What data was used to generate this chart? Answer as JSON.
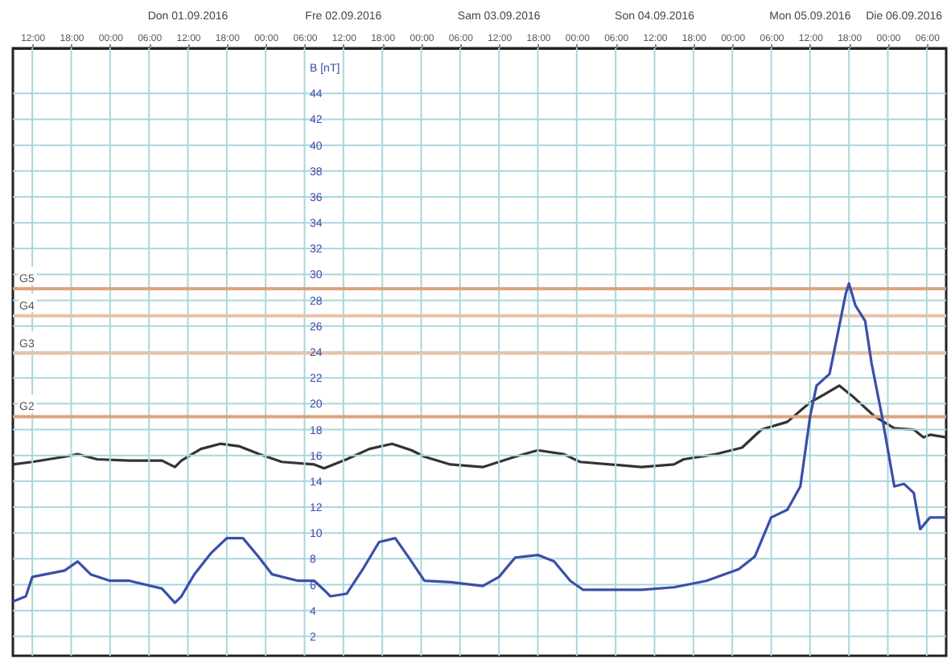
{
  "chart_data": {
    "type": "line",
    "ylabel": "B [nT]",
    "xlim": [
      "2016-08-31T09:00",
      "2016-09-06T09:00"
    ],
    "ylim": [
      0.5,
      47.5
    ],
    "yticks": [
      2,
      4,
      6,
      8,
      10,
      12,
      14,
      16,
      18,
      20,
      22,
      24,
      26,
      28,
      30,
      32,
      34,
      36,
      38,
      40,
      42,
      44
    ],
    "xticks": [
      {
        "value": "2016-08-31T12:00",
        "label": "12:00"
      },
      {
        "value": "2016-08-31T18:00",
        "label": "18:00"
      },
      {
        "value": "2016-09-01T00:00",
        "label": "00:00"
      },
      {
        "value": "2016-09-01T06:00",
        "label": "06:00"
      },
      {
        "value": "2016-09-01T12:00",
        "label": "12:00"
      },
      {
        "value": "2016-09-01T18:00",
        "label": "18:00"
      },
      {
        "value": "2016-09-02T00:00",
        "label": "00:00"
      },
      {
        "value": "2016-09-02T06:00",
        "label": "06:00"
      },
      {
        "value": "2016-09-02T12:00",
        "label": "12:00"
      },
      {
        "value": "2016-09-02T18:00",
        "label": "18:00"
      },
      {
        "value": "2016-09-03T00:00",
        "label": "00:00"
      },
      {
        "value": "2016-09-03T06:00",
        "label": "06:00"
      },
      {
        "value": "2016-09-03T12:00",
        "label": "12:00"
      },
      {
        "value": "2016-09-03T18:00",
        "label": "18:00"
      },
      {
        "value": "2016-09-04T00:00",
        "label": "00:00"
      },
      {
        "value": "2016-09-04T06:00",
        "label": "06:00"
      },
      {
        "value": "2016-09-04T12:00",
        "label": "12:00"
      },
      {
        "value": "2016-09-04T18:00",
        "label": "18:00"
      },
      {
        "value": "2016-09-05T00:00",
        "label": "00:00"
      },
      {
        "value": "2016-09-05T06:00",
        "label": "06:00"
      },
      {
        "value": "2016-09-05T12:00",
        "label": "12:00"
      },
      {
        "value": "2016-09-05T18:00",
        "label": "18:00"
      },
      {
        "value": "2016-09-06T00:00",
        "label": "00:00"
      },
      {
        "value": "2016-09-06T06:00",
        "label": "06:00"
      }
    ],
    "x2ticks": [
      {
        "value": "2016-09-01T12:00",
        "label": "Don 01.09.2016"
      },
      {
        "value": "2016-09-02T12:00",
        "label": "Fre 02.09.2016"
      },
      {
        "value": "2016-09-03T12:00",
        "label": "Sam 03.09.2016"
      },
      {
        "value": "2016-09-04T12:00",
        "label": "Son 04.09.2016"
      },
      {
        "value": "2016-09-05T12:00",
        "label": "Mon 05.09.2016"
      },
      {
        "value": "2016-09-06T02:30",
        "label": "Die 06.09.2016"
      }
    ],
    "x2lim": [
      "2016-08-31T09:00",
      "2016-09-06T09:00"
    ],
    "grid": true,
    "ref_lines": [
      {
        "axis": "y",
        "value": 28.9,
        "label": "G5",
        "color": "#d9a37a"
      },
      {
        "axis": "y",
        "value": 26.8,
        "label": "G4",
        "color": "#e8c4a8"
      },
      {
        "axis": "y",
        "value": 23.9,
        "label": "G3",
        "color": "#e8c4a8"
      },
      {
        "axis": "y",
        "value": 19.0,
        "label": "G2",
        "color": "#d9a37a"
      }
    ],
    "series": [
      {
        "color": "#333333",
        "x": [
          "2016-08-31T09:00",
          "2016-08-31T12:00",
          "2016-08-31T17:00",
          "2016-08-31T19:00",
          "2016-08-31T22:00",
          "2016-09-01T03:00",
          "2016-09-01T08:00",
          "2016-09-01T10:00",
          "2016-09-01T11:00",
          "2016-09-01T14:00",
          "2016-09-01T17:00",
          "2016-09-01T20:00",
          "2016-09-01T23:00",
          "2016-09-02T02:30",
          "2016-09-02T07:30",
          "2016-09-02T09:00",
          "2016-09-02T12:30",
          "2016-09-02T16:00",
          "2016-09-02T19:30",
          "2016-09-02T22:30",
          "2016-09-03T00:30",
          "2016-09-03T04:30",
          "2016-09-03T09:30",
          "2016-09-03T14:30",
          "2016-09-03T18:00",
          "2016-09-03T22:00",
          "2016-09-04T00:30",
          "2016-09-04T10:00",
          "2016-09-04T15:00",
          "2016-09-04T16:30",
          "2016-09-04T21:30",
          "2016-09-05T01:30",
          "2016-09-05T04:30",
          "2016-09-05T08:30",
          "2016-09-05T12:00",
          "2016-09-05T14:30",
          "2016-09-05T16:30",
          "2016-09-05T18:30",
          "2016-09-05T22:00",
          "2016-09-06T01:00",
          "2016-09-06T04:00",
          "2016-09-06T05:30",
          "2016-09-06T06:30",
          "2016-09-06T09:00"
        ],
        "values": [
          15.3,
          15.5,
          15.9,
          16.1,
          15.7,
          15.6,
          15.6,
          15.1,
          15.6,
          16.5,
          16.9,
          16.7,
          16.1,
          15.5,
          15.3,
          15.0,
          15.7,
          16.5,
          16.9,
          16.4,
          15.9,
          15.3,
          15.1,
          15.9,
          16.4,
          16.1,
          15.5,
          15.1,
          15.3,
          15.7,
          16.1,
          16.6,
          18.0,
          18.6,
          20.1,
          20.8,
          21.4,
          20.6,
          19.0,
          18.1,
          18.0,
          17.4,
          17.6,
          17.4
        ]
      },
      {
        "color": "#3a4fa8",
        "x": [
          "2016-08-31T09:00",
          "2016-08-31T11:00",
          "2016-08-31T12:00",
          "2016-08-31T17:00",
          "2016-08-31T19:00",
          "2016-08-31T21:00",
          "2016-09-01T00:00",
          "2016-09-01T03:00",
          "2016-09-01T08:00",
          "2016-09-01T10:00",
          "2016-09-01T11:00",
          "2016-09-01T13:00",
          "2016-09-01T15:30",
          "2016-09-01T18:00",
          "2016-09-01T20:30",
          "2016-09-01T23:00",
          "2016-09-02T01:00",
          "2016-09-02T05:00",
          "2016-09-02T07:30",
          "2016-09-02T09:00",
          "2016-09-02T10:00",
          "2016-09-02T12:30",
          "2016-09-02T15:00",
          "2016-09-02T17:30",
          "2016-09-02T20:00",
          "2016-09-02T22:30",
          "2016-09-03T00:30",
          "2016-09-03T04:30",
          "2016-09-03T09:30",
          "2016-09-03T12:00",
          "2016-09-03T14:30",
          "2016-09-03T18:00",
          "2016-09-03T20:30",
          "2016-09-03T23:00",
          "2016-09-04T01:00",
          "2016-09-04T10:00",
          "2016-09-04T15:00",
          "2016-09-04T20:00",
          "2016-09-05T01:00",
          "2016-09-05T03:30",
          "2016-09-05T06:00",
          "2016-09-05T08:30",
          "2016-09-05T10:30",
          "2016-09-05T12:00",
          "2016-09-05T13:00",
          "2016-09-05T15:00",
          "2016-09-05T16:30",
          "2016-09-05T17:30",
          "2016-09-05T18:00",
          "2016-09-05T19:00",
          "2016-09-05T20:30",
          "2016-09-05T21:30",
          "2016-09-05T23:00",
          "2016-09-06T01:00",
          "2016-09-06T02:30",
          "2016-09-06T04:00",
          "2016-09-06T05:00",
          "2016-09-06T06:30",
          "2016-09-06T09:00"
        ],
        "values": [
          4.7,
          5.1,
          6.6,
          7.1,
          7.8,
          6.8,
          6.3,
          6.3,
          5.7,
          4.6,
          5.1,
          6.8,
          8.4,
          9.6,
          9.6,
          8.1,
          6.8,
          6.3,
          6.3,
          5.6,
          5.1,
          5.3,
          7.2,
          9.3,
          9.6,
          7.8,
          6.3,
          6.2,
          5.9,
          6.6,
          8.1,
          8.3,
          7.8,
          6.3,
          5.6,
          5.6,
          5.8,
          6.3,
          7.2,
          8.2,
          11.2,
          11.8,
          13.6,
          19.0,
          21.4,
          22.3,
          26.0,
          28.5,
          29.3,
          27.6,
          26.4,
          23.1,
          19.3,
          13.6,
          13.8,
          13.1,
          10.3,
          11.2,
          11.2
        ]
      }
    ]
  }
}
